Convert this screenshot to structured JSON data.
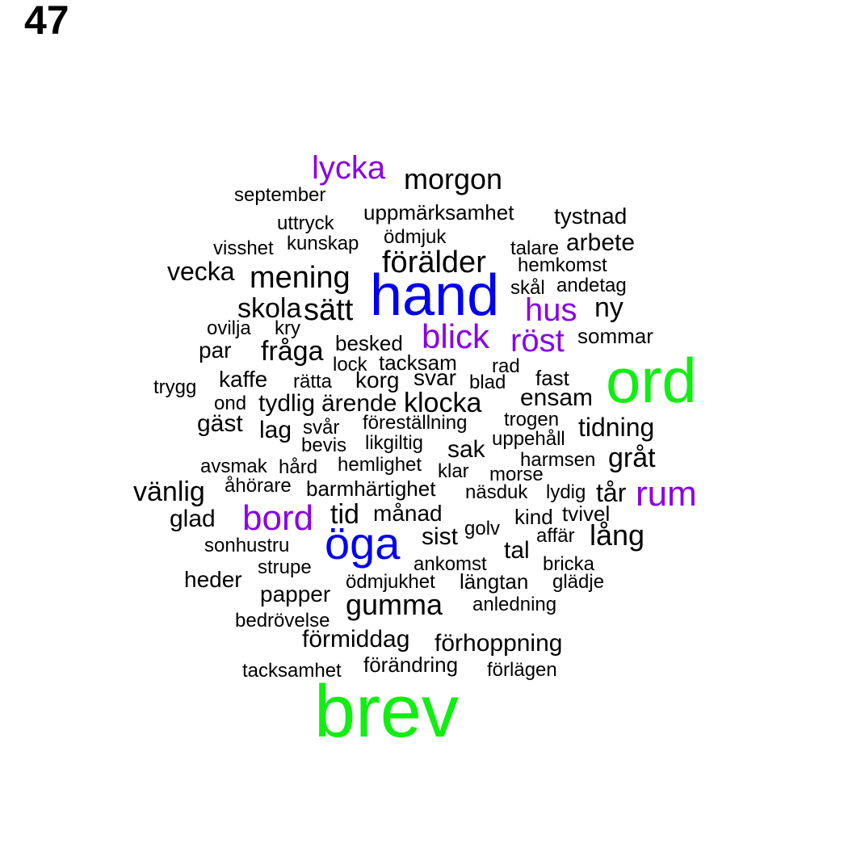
{
  "page_number": "47",
  "palette": {
    "black": "#000000",
    "blue": "#0000ee",
    "purple": "#8a00e6",
    "green": "#11ee11"
  },
  "words": [
    {
      "text": "lycka",
      "color": "purple"
    },
    {
      "text": "morgon",
      "color": "black"
    },
    {
      "text": "september",
      "color": "black"
    },
    {
      "text": "uppmärksamhet",
      "color": "black"
    },
    {
      "text": "tystnad",
      "color": "black"
    },
    {
      "text": "uttryck",
      "color": "black"
    },
    {
      "text": "ödmjuk",
      "color": "black"
    },
    {
      "text": "visshet",
      "color": "black"
    },
    {
      "text": "kunskap",
      "color": "black"
    },
    {
      "text": "talare",
      "color": "black"
    },
    {
      "text": "arbete",
      "color": "black"
    },
    {
      "text": "förälder",
      "color": "black"
    },
    {
      "text": "hemkomst",
      "color": "black"
    },
    {
      "text": "vecka",
      "color": "black"
    },
    {
      "text": "mening",
      "color": "black"
    },
    {
      "text": "hand",
      "color": "blue"
    },
    {
      "text": "skål",
      "color": "black"
    },
    {
      "text": "andetag",
      "color": "black"
    },
    {
      "text": "skola",
      "color": "black"
    },
    {
      "text": "sätt",
      "color": "black"
    },
    {
      "text": "hus",
      "color": "purple"
    },
    {
      "text": "ny",
      "color": "black"
    },
    {
      "text": "ovilja",
      "color": "black"
    },
    {
      "text": "kry",
      "color": "black"
    },
    {
      "text": "blick",
      "color": "purple"
    },
    {
      "text": "röst",
      "color": "purple"
    },
    {
      "text": "sommar",
      "color": "black"
    },
    {
      "text": "besked",
      "color": "black"
    },
    {
      "text": "par",
      "color": "black"
    },
    {
      "text": "fråga",
      "color": "black"
    },
    {
      "text": "lock",
      "color": "black"
    },
    {
      "text": "tacksam",
      "color": "black"
    },
    {
      "text": "ord",
      "color": "green"
    },
    {
      "text": "rad",
      "color": "black"
    },
    {
      "text": "trygg",
      "color": "black"
    },
    {
      "text": "kaffe",
      "color": "black"
    },
    {
      "text": "rätta",
      "color": "black"
    },
    {
      "text": "korg",
      "color": "black"
    },
    {
      "text": "svar",
      "color": "black"
    },
    {
      "text": "blad",
      "color": "black"
    },
    {
      "text": "fast",
      "color": "black"
    },
    {
      "text": "ond",
      "color": "black"
    },
    {
      "text": "tydlig",
      "color": "black"
    },
    {
      "text": "ärende",
      "color": "black"
    },
    {
      "text": "klocka",
      "color": "black"
    },
    {
      "text": "ensam",
      "color": "black"
    },
    {
      "text": "gäst",
      "color": "black"
    },
    {
      "text": "lag",
      "color": "black"
    },
    {
      "text": "svår",
      "color": "black"
    },
    {
      "text": "föreställning",
      "color": "black"
    },
    {
      "text": "trogen",
      "color": "black"
    },
    {
      "text": "tidning",
      "color": "black"
    },
    {
      "text": "bevis",
      "color": "black"
    },
    {
      "text": "likgiltig",
      "color": "black"
    },
    {
      "text": "sak",
      "color": "black"
    },
    {
      "text": "uppehåll",
      "color": "black"
    },
    {
      "text": "avsmak",
      "color": "black"
    },
    {
      "text": "hård",
      "color": "black"
    },
    {
      "text": "hemlighet",
      "color": "black"
    },
    {
      "text": "klar",
      "color": "black"
    },
    {
      "text": "harmsen",
      "color": "black"
    },
    {
      "text": "gråt",
      "color": "black"
    },
    {
      "text": "morse",
      "color": "black"
    },
    {
      "text": "vänlig",
      "color": "black"
    },
    {
      "text": "åhörare",
      "color": "black"
    },
    {
      "text": "barmhärtighet",
      "color": "black"
    },
    {
      "text": "näsduk",
      "color": "black"
    },
    {
      "text": "lydig",
      "color": "black"
    },
    {
      "text": "tår",
      "color": "black"
    },
    {
      "text": "rum",
      "color": "purple"
    },
    {
      "text": "glad",
      "color": "black"
    },
    {
      "text": "bord",
      "color": "purple"
    },
    {
      "text": "tid",
      "color": "black"
    },
    {
      "text": "månad",
      "color": "black"
    },
    {
      "text": "kind",
      "color": "black"
    },
    {
      "text": "tvivel",
      "color": "black"
    },
    {
      "text": "sist",
      "color": "black"
    },
    {
      "text": "golv",
      "color": "black"
    },
    {
      "text": "affär",
      "color": "black"
    },
    {
      "text": "lång",
      "color": "black"
    },
    {
      "text": "sonhustru",
      "color": "black"
    },
    {
      "text": "öga",
      "color": "blue"
    },
    {
      "text": "tal",
      "color": "black"
    },
    {
      "text": "ankomst",
      "color": "black"
    },
    {
      "text": "bricka",
      "color": "black"
    },
    {
      "text": "strupe",
      "color": "black"
    },
    {
      "text": "heder",
      "color": "black"
    },
    {
      "text": "ödmjukhet",
      "color": "black"
    },
    {
      "text": "längtan",
      "color": "black"
    },
    {
      "text": "glädje",
      "color": "black"
    },
    {
      "text": "papper",
      "color": "black"
    },
    {
      "text": "gumma",
      "color": "black"
    },
    {
      "text": "anledning",
      "color": "black"
    },
    {
      "text": "bedrövelse",
      "color": "black"
    },
    {
      "text": "förmiddag",
      "color": "black"
    },
    {
      "text": "förhoppning",
      "color": "black"
    },
    {
      "text": "tacksamhet",
      "color": "black"
    },
    {
      "text": "förändring",
      "color": "black"
    },
    {
      "text": "förlägen",
      "color": "black"
    },
    {
      "text": "brev",
      "color": "green"
    }
  ]
}
